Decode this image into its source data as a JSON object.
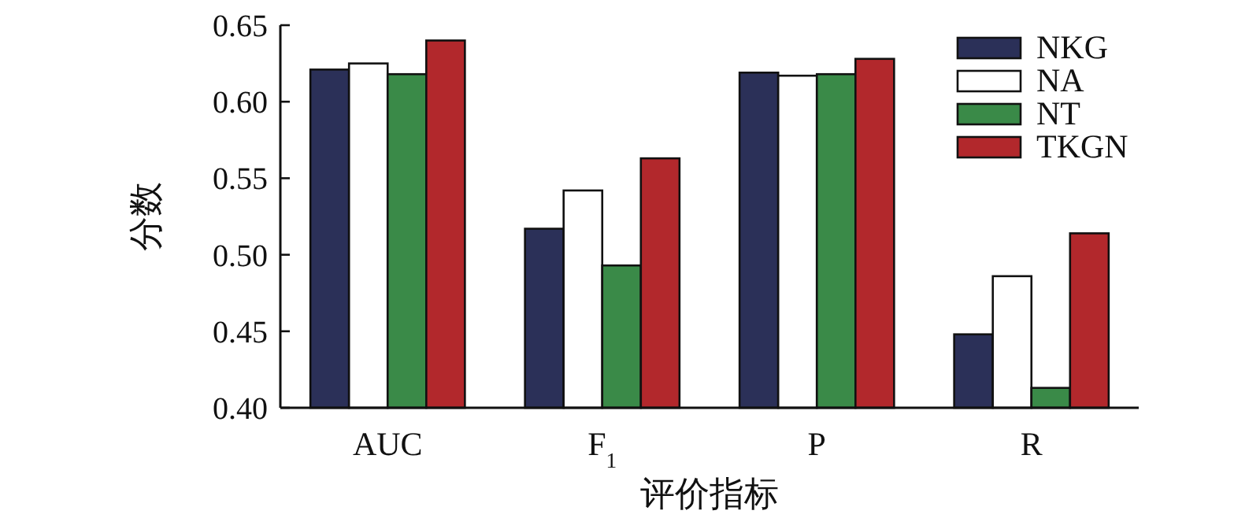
{
  "chart_data": {
    "type": "bar",
    "xlabel": "评价指标",
    "ylabel": "分数",
    "categories": [
      "AUC",
      "F$_{1}$",
      "P",
      "R"
    ],
    "series": [
      {
        "name": "NKG",
        "color": "#2b3058",
        "values": [
          0.621,
          0.517,
          0.619,
          0.448
        ]
      },
      {
        "name": "NA",
        "color": "#ffffff",
        "values": [
          0.625,
          0.542,
          0.617,
          0.486
        ]
      },
      {
        "name": "NT",
        "color": "#3a8a48",
        "values": [
          0.618,
          0.493,
          0.618,
          0.413
        ]
      },
      {
        "name": "TKGN",
        "color": "#b2282c",
        "values": [
          0.64,
          0.563,
          0.628,
          0.514
        ]
      }
    ],
    "ylim": [
      0.4,
      0.65
    ],
    "yticks": [
      {
        "value": 0.4,
        "label": "0.40"
      },
      {
        "value": 0.45,
        "label": "0.45"
      },
      {
        "value": 0.5,
        "label": "0.50"
      },
      {
        "value": 0.55,
        "label": "0.55"
      },
      {
        "value": 0.6,
        "label": "0.60"
      },
      {
        "value": 0.65,
        "label": "0.65"
      }
    ],
    "legend": "top right",
    "grid": false
  }
}
